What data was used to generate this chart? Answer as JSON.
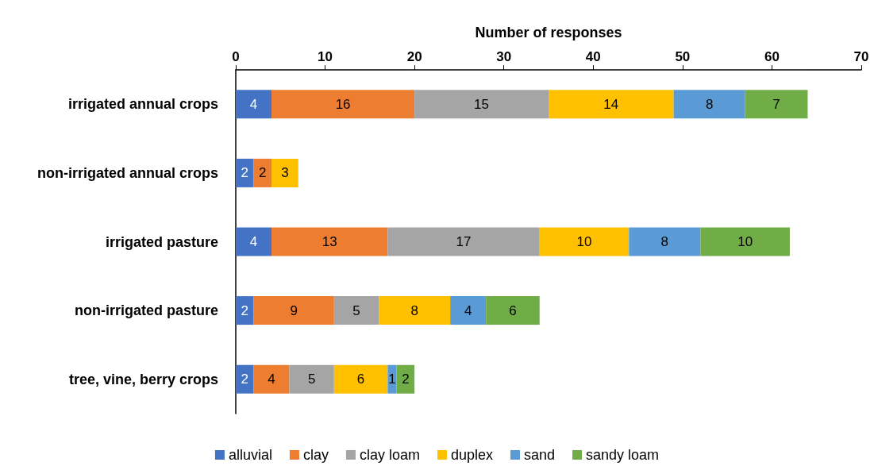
{
  "chart_data": {
    "type": "bar",
    "orientation": "horizontal",
    "stacked": true,
    "xlabel": "Number of responses",
    "categories": [
      "irrigated annual crops",
      "non-irrigated annual crops",
      "irrigated pasture",
      "non-irrigated pasture",
      "tree, vine, berry crops"
    ],
    "series": [
      {
        "name": "alluvial",
        "color": "#4472c4",
        "values": [
          4,
          2,
          4,
          2,
          2
        ]
      },
      {
        "name": "clay",
        "color": "#ed7d31",
        "values": [
          16,
          2,
          13,
          9,
          4
        ]
      },
      {
        "name": "clay loam",
        "color": "#a5a5a5",
        "values": [
          15,
          null,
          17,
          5,
          5
        ]
      },
      {
        "name": "duplex",
        "color": "#ffc000",
        "values": [
          14,
          3,
          10,
          8,
          6
        ]
      },
      {
        "name": "sand",
        "color": "#5b9bd5",
        "values": [
          8,
          null,
          8,
          4,
          1
        ]
      },
      {
        "name": "sandy loam",
        "color": "#70ad47",
        "values": [
          7,
          null,
          10,
          6,
          2
        ]
      }
    ],
    "xlim": [
      0,
      70
    ],
    "xticks": [
      0,
      10,
      20,
      30,
      40,
      50,
      60,
      70
    ],
    "grid": false,
    "legend": "bottom",
    "data_labels": true
  }
}
